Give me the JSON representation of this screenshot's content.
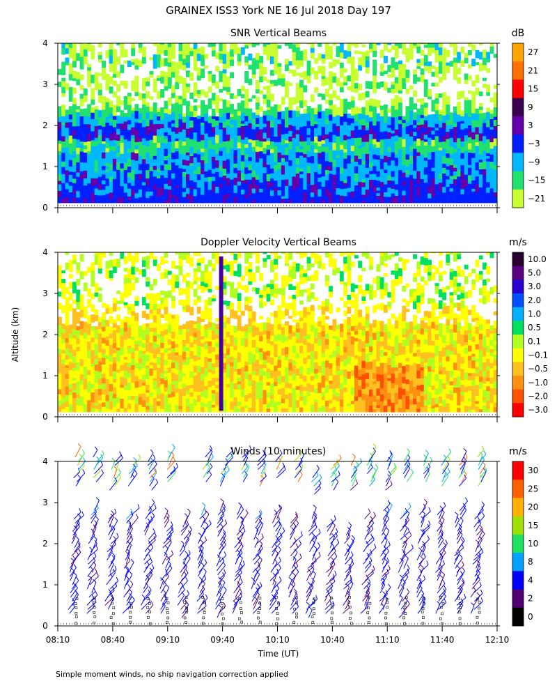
{
  "figure": {
    "title": "GRAINEX ISS3 York NE  16 Jul 2018 Day 197",
    "footnote": "Simple moment winds, no ship navigation correction applied",
    "ylabel": "Altitude (km)",
    "xlabel": "Time (UT)"
  },
  "chart_data": [
    {
      "type": "heatmap",
      "title": "SNR Vertical Beams",
      "colorbar_unit": "dB",
      "colorbar_labels": [
        "27",
        "21",
        "15",
        "9",
        "3",
        "−3",
        "−9",
        "−15",
        "−21"
      ],
      "colorbar_colors": [
        "#ffa500",
        "#ff7000",
        "#ff0000",
        "#3c0050",
        "#6600aa",
        "#0020ff",
        "#00b8ff",
        "#20e070",
        "#c8ff30"
      ],
      "y_ticks": [
        "0",
        "1",
        "2",
        "3",
        "4"
      ],
      "ylim": [
        0,
        4
      ],
      "x_ticks": [],
      "layers": [
        {
          "alt_from": 0.1,
          "alt_to": 0.2,
          "snr_db": 6
        },
        {
          "alt_from": 0.2,
          "alt_to": 1.3,
          "snr_db": 0
        },
        {
          "alt_from": 1.3,
          "alt_to": 2.2,
          "snr_db": -6
        },
        {
          "alt_from": 2.2,
          "alt_to": 4.0,
          "snr_db": -18
        }
      ]
    },
    {
      "type": "heatmap",
      "title": "Doppler Velocity Vertical Beams",
      "colorbar_unit": "m/s",
      "colorbar_labels": [
        "10.0",
        "5.0",
        "3.0",
        "2.0",
        "1.0",
        "0.5",
        "0.1",
        "−0.1",
        "−0.5",
        "−1.0",
        "−2.0",
        "−3.0"
      ],
      "colorbar_colors": [
        "#280030",
        "#5a0080",
        "#2a00d0",
        "#0050ff",
        "#00b0ff",
        "#00e060",
        "#b0ff20",
        "#ffff00",
        "#ffc020",
        "#ff9010",
        "#ff5000",
        "#ff0000"
      ],
      "y_ticks": [
        "0",
        "1",
        "2",
        "3",
        "4"
      ],
      "ylim": [
        0,
        4
      ],
      "x_ticks": [],
      "layers": [
        {
          "alt_from": 0.1,
          "alt_to": 2.2,
          "velocity_ms": -0.5
        },
        {
          "alt_from": 2.2,
          "alt_to": 4.0,
          "velocity_ms": -0.1
        }
      ],
      "annotation": "strong downward velocity column near 09:40"
    },
    {
      "type": "scatter",
      "title": "Winds (10 minutes)",
      "colorbar_unit": "m/s",
      "colorbar_labels": [
        "30",
        "25",
        "20",
        "15",
        "10",
        "8",
        "4",
        "2",
        "0"
      ],
      "colorbar_colors": [
        "#ff0000",
        "#ff6000",
        "#ffb000",
        "#a0e000",
        "#20e060",
        "#00a0ff",
        "#0000ff",
        "#500070",
        "#000000"
      ],
      "y_ticks": [
        "0",
        "1",
        "2",
        "3",
        "4"
      ],
      "ylim": [
        0,
        4
      ],
      "x_ticks": [
        "08:10",
        "08:40",
        "09:10",
        "09:40",
        "10:10",
        "10:40",
        "11:10",
        "11:40",
        "12:10"
      ],
      "xlim": [
        "08:10",
        "12:10"
      ],
      "profile_times": [
        "08:10",
        "08:20",
        "08:30",
        "08:40",
        "08:50",
        "09:00",
        "09:10",
        "09:20",
        "09:30",
        "09:40",
        "09:50",
        "10:00",
        "10:10",
        "10:20",
        "10:30",
        "10:40",
        "10:50",
        "11:00",
        "11:10",
        "11:20",
        "11:30",
        "11:40",
        "11:50",
        "12:00",
        "12:10"
      ],
      "profiles": [
        {
          "time": "08:20",
          "lower_alt_km": [
            0.3,
            2.6
          ],
          "upper_alt_km": [
            3.4,
            4.1
          ]
        },
        {
          "time": "08:30",
          "lower_alt_km": [
            0.3,
            2.8
          ],
          "upper_alt_km": [
            3.5,
            4.1
          ]
        },
        {
          "time": "08:40",
          "lower_alt_km": [
            0.4,
            2.6
          ],
          "upper_alt_km": [
            3.3,
            4.0
          ]
        },
        {
          "time": "08:50",
          "lower_alt_km": [
            0.3,
            2.7
          ],
          "upper_alt_km": [
            3.4,
            3.9
          ]
        },
        {
          "time": "09:00",
          "lower_alt_km": [
            0.3,
            2.8
          ],
          "upper_alt_km": [
            3.3,
            4.0
          ]
        },
        {
          "time": "09:10",
          "lower_alt_km": [
            0.3,
            2.6
          ],
          "upper_alt_km": [
            3.5,
            4.1
          ]
        },
        {
          "time": "09:20",
          "lower_alt_km": [
            0.2,
            2.5
          ],
          "upper_alt_km": []
        },
        {
          "time": "09:30",
          "lower_alt_km": [
            0.3,
            2.7
          ],
          "upper_alt_km": [
            3.5,
            4.1
          ]
        },
        {
          "time": "09:40",
          "lower_alt_km": [
            0.2,
            2.8
          ],
          "upper_alt_km": [
            3.4,
            4.1
          ]
        },
        {
          "time": "09:50",
          "lower_alt_km": [
            0.3,
            2.7
          ],
          "upper_alt_km": [
            3.5,
            4.1
          ]
        },
        {
          "time": "10:00",
          "lower_alt_km": [
            0.3,
            2.6
          ],
          "upper_alt_km": [
            3.4,
            4.0
          ]
        },
        {
          "time": "10:10",
          "lower_alt_km": [
            0.3,
            2.7
          ],
          "upper_alt_km": [
            3.6,
            4.0
          ]
        },
        {
          "time": "10:20",
          "lower_alt_km": [
            0.3,
            2.5
          ],
          "upper_alt_km": [
            3.5,
            4.0
          ]
        },
        {
          "time": "10:30",
          "lower_alt_km": [
            0.2,
            2.6
          ],
          "upper_alt_km": [
            3.2,
            3.6
          ]
        },
        {
          "time": "10:40",
          "lower_alt_km": [
            0.3,
            2.4
          ],
          "upper_alt_km": [
            3.3,
            3.9
          ]
        },
        {
          "time": "10:50",
          "lower_alt_km": [
            0.3,
            2.2
          ],
          "upper_alt_km": [
            3.3,
            3.9
          ]
        },
        {
          "time": "11:00",
          "lower_alt_km": [
            0.3,
            2.6
          ],
          "upper_alt_km": [
            3.4,
            4.1
          ]
        },
        {
          "time": "11:10",
          "lower_alt_km": [
            0.3,
            2.8
          ],
          "upper_alt_km": [
            3.3,
            4.0
          ]
        },
        {
          "time": "11:20",
          "lower_alt_km": [
            0.2,
            2.7
          ],
          "upper_alt_km": [
            3.5,
            4.0
          ]
        },
        {
          "time": "11:30",
          "lower_alt_km": [
            0.3,
            2.8
          ],
          "upper_alt_km": [
            3.5,
            4.0
          ]
        },
        {
          "time": "11:40",
          "lower_alt_km": [
            0.3,
            2.7
          ],
          "upper_alt_km": [
            3.4,
            4.0
          ]
        },
        {
          "time": "11:50",
          "lower_alt_km": [
            0.3,
            2.8
          ],
          "upper_alt_km": [
            3.4,
            4.0
          ]
        },
        {
          "time": "12:00",
          "lower_alt_km": [
            0.3,
            2.7
          ],
          "upper_alt_km": [
            3.4,
            4.1
          ]
        }
      ]
    }
  ]
}
